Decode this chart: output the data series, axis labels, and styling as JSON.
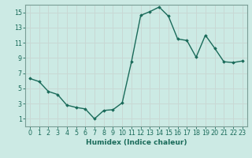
{
  "x": [
    0,
    1,
    2,
    3,
    4,
    5,
    6,
    7,
    8,
    9,
    10,
    11,
    12,
    13,
    14,
    15,
    16,
    17,
    18,
    19,
    20,
    21,
    22,
    23
  ],
  "y": [
    6.3,
    5.9,
    4.6,
    4.2,
    2.8,
    2.5,
    2.3,
    1.0,
    2.1,
    2.2,
    3.1,
    8.5,
    14.6,
    15.1,
    15.7,
    14.5,
    11.5,
    11.3,
    9.1,
    12.0,
    10.3,
    8.5,
    8.4,
    8.6
  ],
  "line_color": "#1a6b5a",
  "marker": "D",
  "marker_size": 1.8,
  "bg_color": "#cceae4",
  "grid_color": "#c8d8d4",
  "xlabel": "Humidex (Indice chaleur)",
  "xlim": [
    -0.5,
    23.5
  ],
  "ylim": [
    0,
    16
  ],
  "yticks": [
    1,
    3,
    5,
    7,
    9,
    11,
    13,
    15
  ],
  "xticks": [
    0,
    1,
    2,
    3,
    4,
    5,
    6,
    7,
    8,
    9,
    10,
    11,
    12,
    13,
    14,
    15,
    16,
    17,
    18,
    19,
    20,
    21,
    22,
    23
  ],
  "xlabel_fontsize": 6.5,
  "tick_fontsize": 5.8,
  "line_width": 1.0,
  "spine_color": "#7a9e96"
}
